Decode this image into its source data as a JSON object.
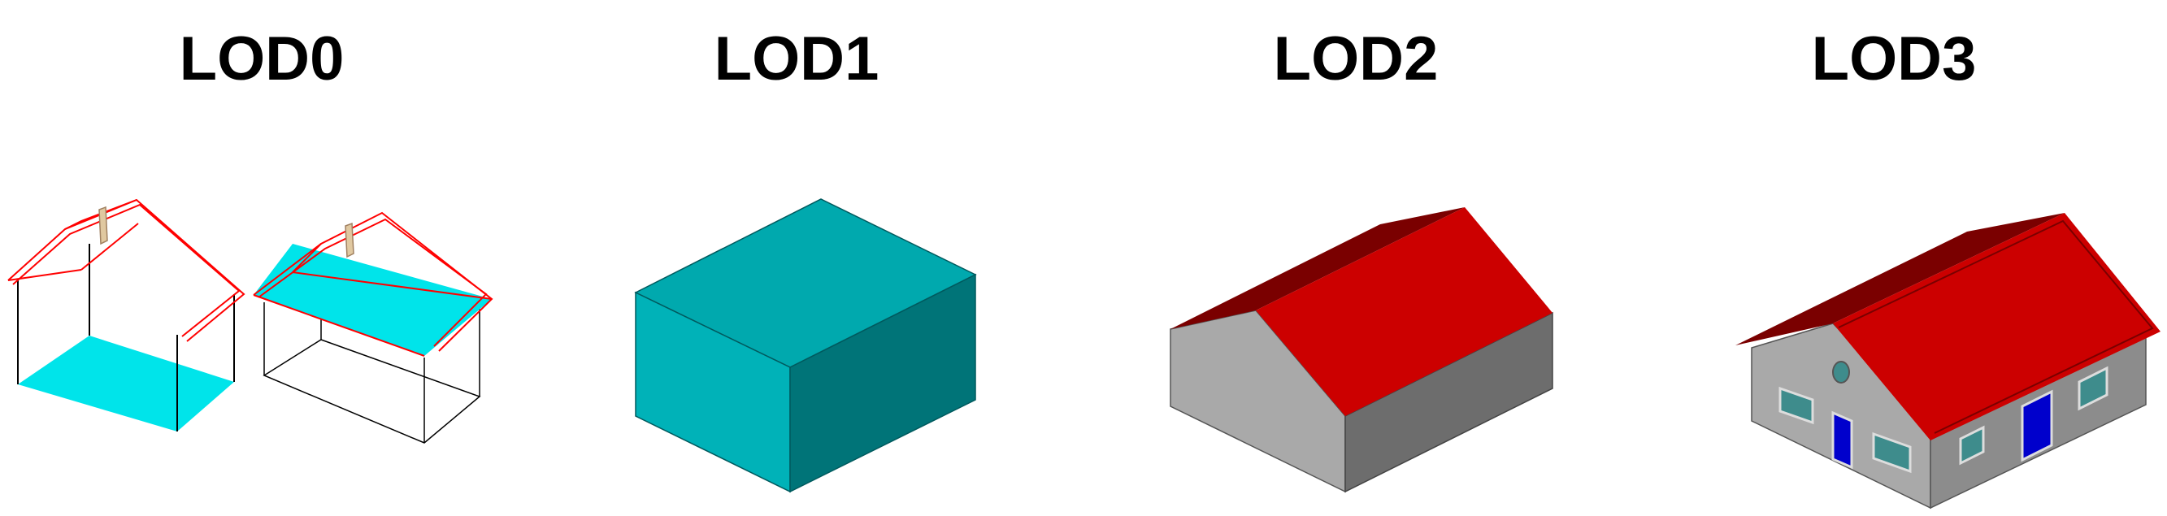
{
  "labels": {
    "lod0": "LOD0",
    "lod1": "LOD1",
    "lod2": "LOD2",
    "lod3": "LOD3"
  },
  "colors": {
    "footprint_cyan": "#00e4ea",
    "wire_red": "#ff0000",
    "lod1_front": "#00b2b8",
    "lod1_right": "#007478",
    "lod1_top": "#00a9ae",
    "roof_red": "#cc0000",
    "roof_dark": "#7a0000",
    "wall_light": "#a9a9a9",
    "wall_dark": "#6d6d6d",
    "window_teal": "#3e8c8c",
    "door_blue": "#0000cc",
    "chimney_tan": "#e0c8a0"
  }
}
